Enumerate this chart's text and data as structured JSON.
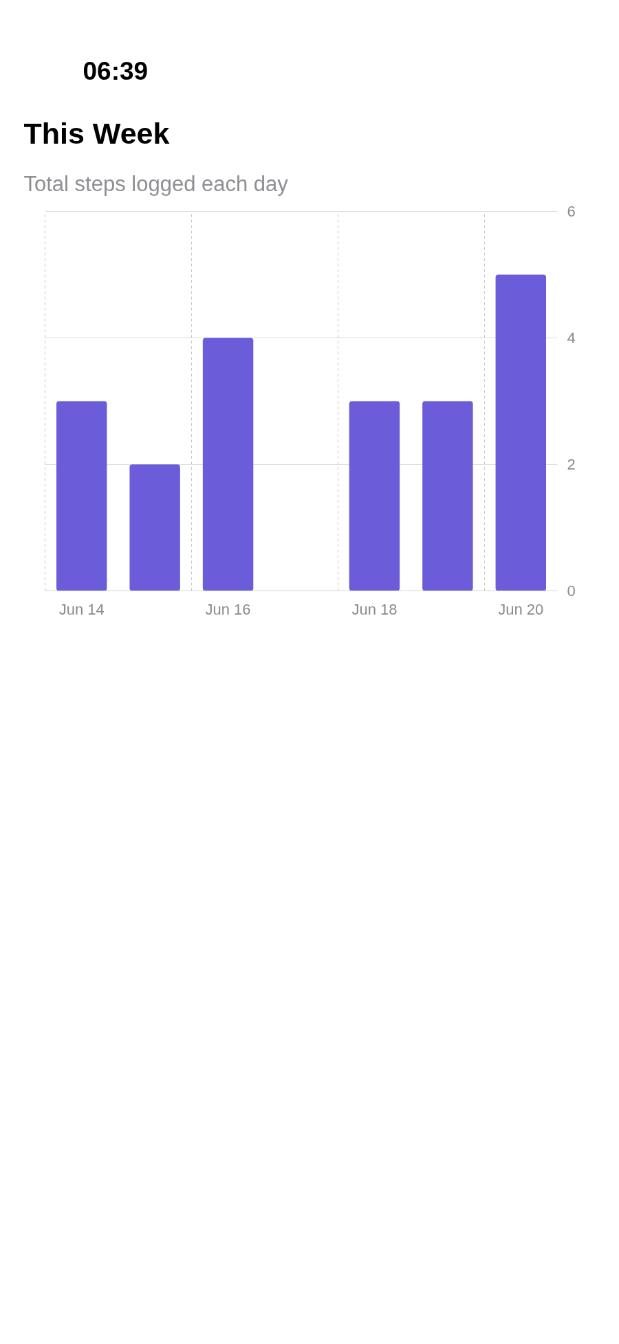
{
  "chart_data": {
    "type": "bar",
    "title": "This Week",
    "subtitle": "Total steps logged each day",
    "annotations": [
      "06:39"
    ],
    "categories": [
      "Jun 14",
      null,
      "Jun 16",
      null,
      "Jun 18",
      null,
      "Jun 20"
    ],
    "values": [
      3,
      2,
      4,
      null,
      3,
      3,
      5
    ],
    "color": "#6b5cd9",
    "ylim": [
      0,
      6
    ],
    "yticks": [
      0,
      2,
      4,
      6
    ],
    "grid": true
  }
}
